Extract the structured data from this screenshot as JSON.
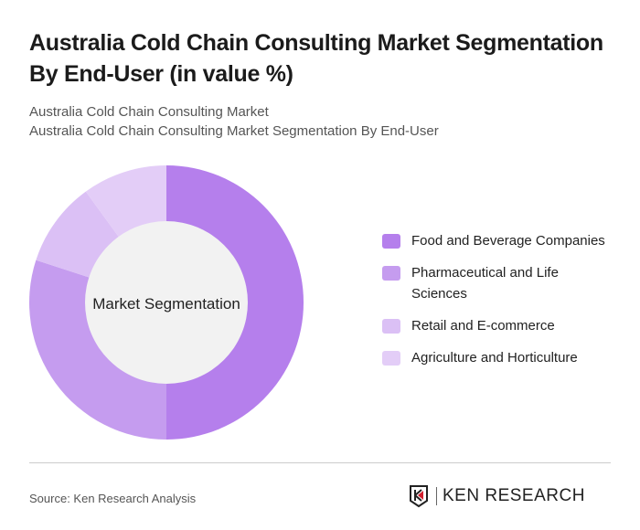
{
  "title": "Australia Cold Chain Consulting Market Segmentation By End-User (in value %)",
  "subtitle1": "Australia Cold Chain Consulting Market",
  "subtitle2": "Australia Cold Chain Consulting Market Segmentation By End-User",
  "source": "Source: Ken Research Analysis",
  "logo_text": "KEN RESEARCH",
  "chart_data": {
    "type": "pie",
    "donut": true,
    "center_label": "Market Segmentation",
    "categories": [
      "Food and Beverage Companies",
      "Pharmaceutical and Life Sciences",
      "Retail and E-commerce",
      "Agriculture and Horticulture"
    ],
    "values": [
      50,
      30,
      10,
      10
    ],
    "colors": [
      "#b57fec",
      "#c59cef",
      "#dbc0f5",
      "#e3cdf7"
    ],
    "legend_position": "right"
  }
}
